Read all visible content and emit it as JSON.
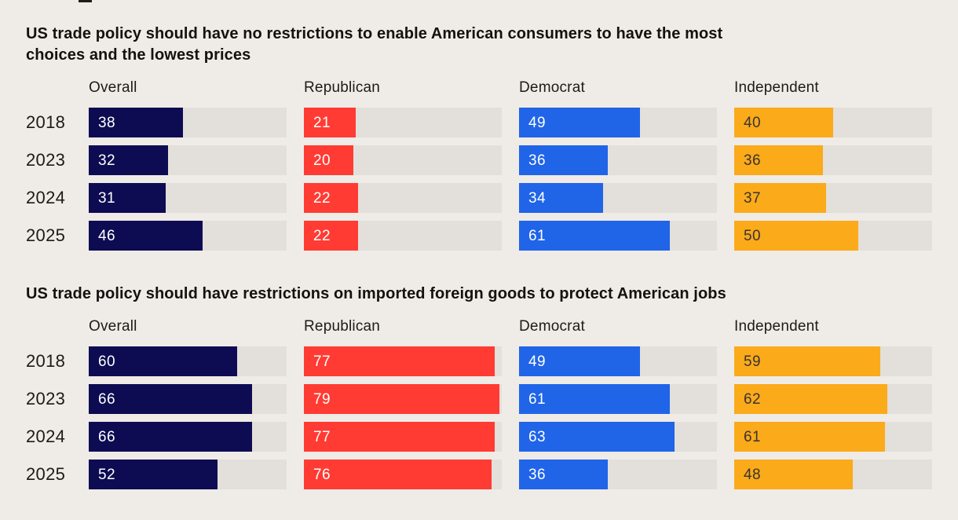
{
  "style": {
    "background": "#efebe7",
    "track_color": "#e3dfda",
    "title_color": "#14110e",
    "label_color": "#1d1a17",
    "series_colors": {
      "Overall": {
        "bar": "#0d0c52",
        "label": "#ffffff"
      },
      "Republican": {
        "bar": "#ff3b33",
        "label": "#ffffff"
      },
      "Democrat": {
        "bar": "#2064e8",
        "label": "#ffffff"
      },
      "Independent": {
        "bar": "#fbaa1a",
        "label": "#383430"
      }
    }
  },
  "chart_data": [
    {
      "type": "bar",
      "orientation": "horizontal",
      "title": "US trade policy should have no restrictions to enable American consumers to have the most choices and the lowest prices",
      "title_lines": [
        "US trade policy should have no restrictions to enable American consumers to have the most",
        "choices and the lowest prices"
      ],
      "categories": [
        "2018",
        "2023",
        "2024",
        "2025"
      ],
      "series": [
        {
          "name": "Overall",
          "values": [
            38,
            32,
            31,
            46
          ]
        },
        {
          "name": "Republican",
          "values": [
            21,
            20,
            22,
            22
          ]
        },
        {
          "name": "Democrat",
          "values": [
            49,
            36,
            34,
            61
          ]
        },
        {
          "name": "Independent",
          "values": [
            40,
            36,
            37,
            50
          ]
        }
      ],
      "xlim": [
        0,
        80
      ],
      "grid": false,
      "value_labels": "inside-start",
      "legend_position": "column-headers"
    },
    {
      "type": "bar",
      "orientation": "horizontal",
      "title": "US trade policy should have restrictions on imported foreign goods to protect American jobs",
      "title_lines": [
        "US trade policy should have restrictions on imported foreign goods to protect American jobs"
      ],
      "categories": [
        "2018",
        "2023",
        "2024",
        "2025"
      ],
      "series": [
        {
          "name": "Overall",
          "values": [
            60,
            66,
            66,
            52
          ]
        },
        {
          "name": "Republican",
          "values": [
            77,
            79,
            77,
            76
          ]
        },
        {
          "name": "Democrat",
          "values": [
            49,
            61,
            63,
            36
          ]
        },
        {
          "name": "Independent",
          "values": [
            59,
            62,
            61,
            48
          ]
        }
      ],
      "xlim": [
        0,
        80
      ],
      "grid": false,
      "value_labels": "inside-start",
      "legend_position": "column-headers"
    }
  ]
}
